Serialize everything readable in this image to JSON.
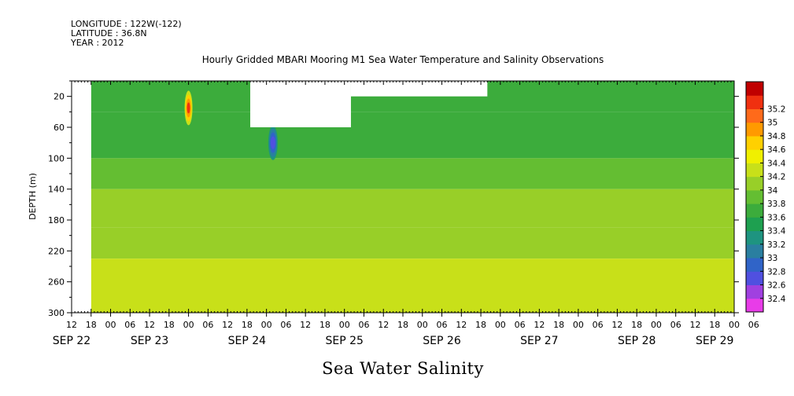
{
  "header": {
    "longitude": "LONGITUDE : 122W(-122)",
    "latitude": "LATITUDE : 36.8N",
    "year": "YEAR : 2012"
  },
  "chart_data": {
    "type": "heatmap",
    "title": "Hourly Gridded MBARI Mooring M1 Sea Water Temperature and Salinity Observations",
    "variable_label": "Sea Water Salinity",
    "ylabel": "DEPTH (m)",
    "ylim": [
      300,
      0
    ],
    "y_ticks": [
      20,
      60,
      100,
      140,
      180,
      220,
      260,
      300
    ],
    "x_range_hours": [
      0,
      204
    ],
    "x_hour_ticks": [
      "12",
      "18",
      "00",
      "06",
      "12",
      "18",
      "00",
      "06",
      "12",
      "18",
      "00",
      "06",
      "12",
      "18",
      "00",
      "06",
      "12",
      "18",
      "00",
      "06",
      "12",
      "18",
      "00",
      "06",
      "12",
      "18",
      "00",
      "06",
      "12",
      "18",
      "00",
      "06",
      "12",
      "18",
      "00",
      "06"
    ],
    "x_date_labels": [
      {
        "label": "SEP 22",
        "hour": 0
      },
      {
        "label": "SEP 23",
        "hour": 24
      },
      {
        "label": "SEP 24",
        "hour": 54
      },
      {
        "label": "SEP 25",
        "hour": 84
      },
      {
        "label": "SEP 26",
        "hour": 114
      },
      {
        "label": "SEP 27",
        "hour": 144
      },
      {
        "label": "SEP 28",
        "hour": 174
      },
      {
        "label": "SEP 29",
        "hour": 198
      }
    ],
    "colorbar": {
      "levels": [
        32.4,
        32.6,
        32.8,
        33,
        33.2,
        33.4,
        33.6,
        33.8,
        34,
        34.2,
        34.4,
        34.6,
        34.8,
        35,
        35.2
      ],
      "labels": [
        "35.2",
        "35",
        "34.8",
        "34.6",
        "34.4",
        "34.2",
        "34",
        "33.8",
        "33.6",
        "33.4",
        "33.2",
        "33",
        "32.8",
        "32.6",
        "32.4"
      ],
      "colors_bottom_to_top": [
        "#e83ce8",
        "#a040e0",
        "#5050e0",
        "#3064c8",
        "#2a7fa0",
        "#1e9480",
        "#1ea050",
        "#3cac3c",
        "#64be32",
        "#98cf28",
        "#c8e019",
        "#f0f000",
        "#ffd000",
        "#ff9a00",
        "#ff6a1a",
        "#f03010",
        "#c00000"
      ]
    },
    "data_regions": {
      "no_data_before_hour": 6,
      "gaps": [
        {
          "from_hour": 55,
          "to_hour": 86,
          "depth_from": 0,
          "depth_to": 60
        },
        {
          "from_hour": 86,
          "to_hour": 128,
          "depth_from": 0,
          "depth_to": 20
        }
      ],
      "salinity_by_depth_band": [
        {
          "depth": [
            0,
            40
          ],
          "salinity": 33.6
        },
        {
          "depth": [
            40,
            100
          ],
          "salinity": 33.7
        },
        {
          "depth": [
            100,
            140
          ],
          "salinity": 33.9
        },
        {
          "depth": [
            140,
            190
          ],
          "salinity": 34.0
        },
        {
          "depth": [
            190,
            230
          ],
          "salinity": 34.1
        },
        {
          "depth": [
            230,
            300
          ],
          "salinity": 34.3
        }
      ],
      "anomalies": [
        {
          "hour": 36,
          "depth": 35,
          "salinity": 35.2,
          "note": "high"
        },
        {
          "hour": 62,
          "depth": 80,
          "salinity": 32.8,
          "note": "low"
        }
      ]
    }
  }
}
